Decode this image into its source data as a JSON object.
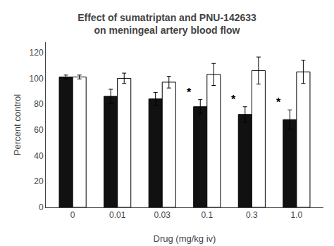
{
  "chart_data": {
    "type": "bar",
    "title": "Effect of sumatriptan and PNU-142633\non meningeal artery blood flow",
    "xlabel": "Drug (mg/kg iv)",
    "ylabel": "Percent control",
    "categories": [
      "0",
      "0.01",
      "0.03",
      "0.1",
      "0.3",
      "1.0"
    ],
    "series": [
      {
        "color": "#111111",
        "values": [
          101,
          86,
          84,
          78,
          72,
          68
        ],
        "errors": [
          1.5,
          5.5,
          5.0,
          5.5,
          6.0,
          7.5
        ]
      },
      {
        "color": "#ffffff",
        "values": [
          101,
          100,
          97,
          103,
          106,
          105
        ],
        "errors": [
          1.5,
          4.0,
          4.5,
          8.5,
          10.5,
          9.0
        ]
      }
    ],
    "ylim": [
      0,
      128
    ],
    "yticks": [
      0,
      20,
      40,
      60,
      80,
      100,
      120
    ],
    "grid": false,
    "annotations": [
      {
        "text": "*",
        "category": "0.1",
        "series": 0
      },
      {
        "text": "*",
        "category": "0.3",
        "series": 0
      },
      {
        "text": "*",
        "category": "1.0",
        "series": 0
      }
    ]
  }
}
